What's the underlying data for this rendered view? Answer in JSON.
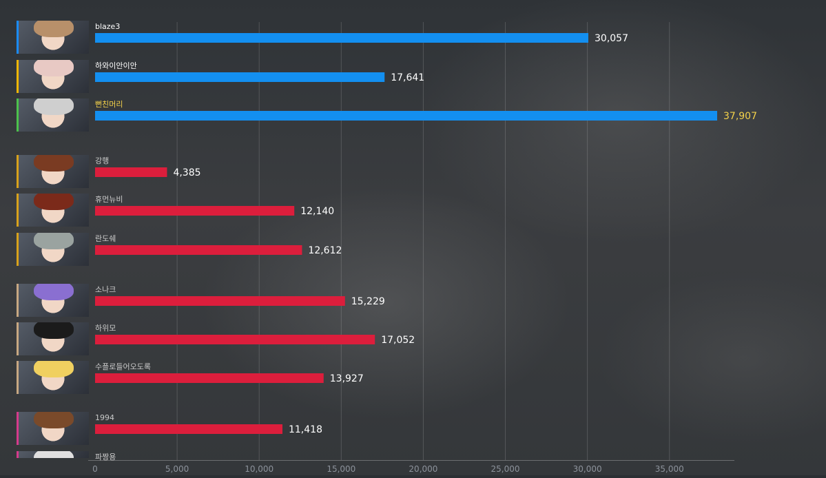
{
  "chart_data": {
    "type": "bar",
    "orientation": "horizontal",
    "title": "",
    "xlabel": "",
    "ylabel": "",
    "xlim": [
      0,
      39000
    ],
    "x_ticks": [
      "0",
      "5,000",
      "10,000",
      "15,000",
      "20,000",
      "25,000",
      "30,000",
      "35,000"
    ],
    "grid": true,
    "legend": "none",
    "bars": [
      {
        "name": "blaze3",
        "value": 30057,
        "label": "30,057",
        "color": "#138ff0",
        "accent": "#1a8cff",
        "highlight": false
      },
      {
        "name": "하와이안이안",
        "value": 17641,
        "label": "17,641",
        "color": "#138ff0",
        "accent": "#f2b705",
        "highlight": false
      },
      {
        "name": "뻔친머리",
        "value": 37907,
        "label": "37,907",
        "color": "#138ff0",
        "accent": "#4cc24c",
        "highlight": true
      },
      {
        "name": "강행",
        "value": 4385,
        "label": "4,385",
        "color": "#dc1e3c",
        "accent": "#d9a21b",
        "highlight": false
      },
      {
        "name": "휴먼뉴비",
        "value": 12140,
        "label": "12,140",
        "color": "#dc1e3c",
        "accent": "#d9a21b",
        "highlight": false
      },
      {
        "name": "란도쉐",
        "value": 12612,
        "label": "12,612",
        "color": "#dc1e3c",
        "accent": "#d9a21b",
        "highlight": false
      },
      {
        "name": "소나크",
        "value": 15229,
        "label": "15,229",
        "color": "#dc1e3c",
        "accent": "#c8a882",
        "highlight": false
      },
      {
        "name": "하위모",
        "value": 17052,
        "label": "17,052",
        "color": "#dc1e3c",
        "accent": "#c8a882",
        "highlight": false
      },
      {
        "name": "수플로들어오도록",
        "value": 13927,
        "label": "13,927",
        "color": "#dc1e3c",
        "accent": "#c8a882",
        "highlight": false
      },
      {
        "name": "1994",
        "value": 11418,
        "label": "11,418",
        "color": "#dc1e3c",
        "accent": "#d63a8c",
        "highlight": false
      },
      {
        "name": "파짱용",
        "value": null,
        "label": "",
        "color": "#dc1e3c",
        "accent": "#d63a8c",
        "highlight": false
      }
    ],
    "colors": {
      "label_normal": "#ffffff",
      "label_highlight": "#f5d24a",
      "name_dim": "#c9c9c9",
      "grid": "rgba(255,255,255,0.16)",
      "tick": "#8d939c"
    }
  }
}
